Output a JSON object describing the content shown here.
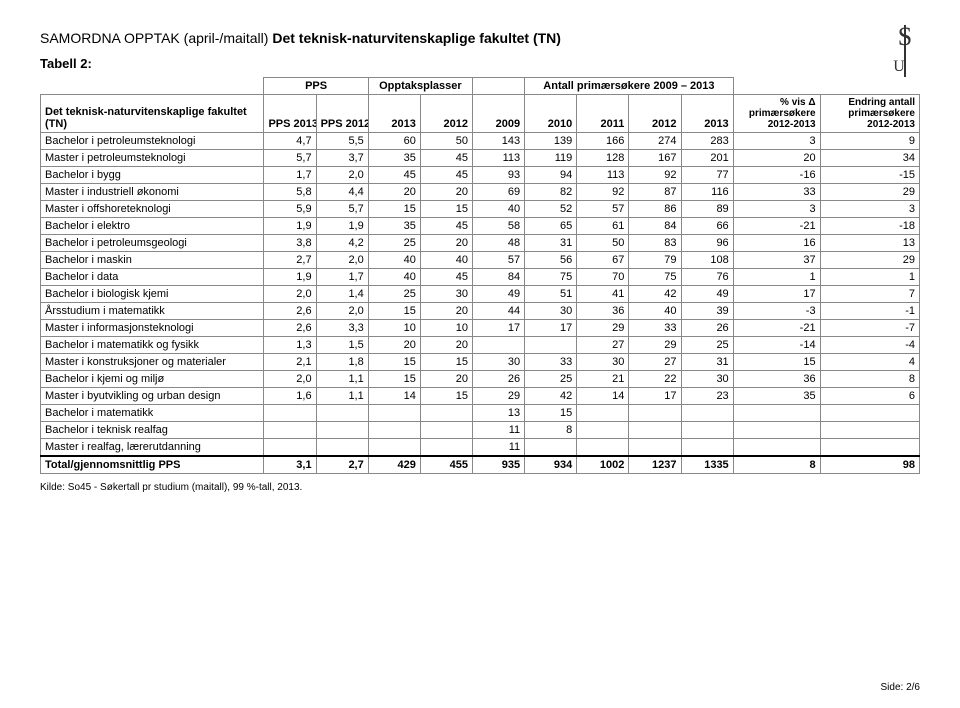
{
  "header": {
    "prefix": "SAMORDNA OPPTAK (april-/maitall)",
    "bold": "Det teknisk-naturvitenskaplige fakultet (TN)",
    "subtitle": "Tabell 2:"
  },
  "group_headers": {
    "pps": "PPS",
    "opptak": "Opptaksplasser",
    "antall": "Antall primærsøkere 2009 – 2013"
  },
  "columns": [
    "Det teknisk-naturvitenskaplige fakultet (TN)",
    "PPS 2013",
    "PPS 2012",
    "2013",
    "2012",
    "2009",
    "2010",
    "2011",
    "2012",
    "2013",
    "% vis Δ primærsøkere 2012-2013",
    "Endring antall primærsøkere 2012-2013"
  ],
  "rows": [
    [
      "Bachelor i petroleumsteknologi",
      "4,7",
      "5,5",
      "60",
      "50",
      "143",
      "139",
      "166",
      "274",
      "283",
      "3",
      "9"
    ],
    [
      "Master i petroleumsteknologi",
      "5,7",
      "3,7",
      "35",
      "45",
      "113",
      "119",
      "128",
      "167",
      "201",
      "20",
      "34"
    ],
    [
      "Bachelor i bygg",
      "1,7",
      "2,0",
      "45",
      "45",
      "93",
      "94",
      "113",
      "92",
      "77",
      "-16",
      "-15"
    ],
    [
      "Master i industriell økonomi",
      "5,8",
      "4,4",
      "20",
      "20",
      "69",
      "82",
      "92",
      "87",
      "116",
      "33",
      "29"
    ],
    [
      "Master i offshoreteknologi",
      "5,9",
      "5,7",
      "15",
      "15",
      "40",
      "52",
      "57",
      "86",
      "89",
      "3",
      "3"
    ],
    [
      "Bachelor i elektro",
      "1,9",
      "1,9",
      "35",
      "45",
      "58",
      "65",
      "61",
      "84",
      "66",
      "-21",
      "-18"
    ],
    [
      "Bachelor i petroleumsgeologi",
      "3,8",
      "4,2",
      "25",
      "20",
      "48",
      "31",
      "50",
      "83",
      "96",
      "16",
      "13"
    ],
    [
      "Bachelor i maskin",
      "2,7",
      "2,0",
      "40",
      "40",
      "57",
      "56",
      "67",
      "79",
      "108",
      "37",
      "29"
    ],
    [
      "Bachelor i data",
      "1,9",
      "1,7",
      "40",
      "45",
      "84",
      "75",
      "70",
      "75",
      "76",
      "1",
      "1"
    ],
    [
      "Bachelor i biologisk kjemi",
      "2,0",
      "1,4",
      "25",
      "30",
      "49",
      "51",
      "41",
      "42",
      "49",
      "17",
      "7"
    ],
    [
      "Årsstudium i matematikk",
      "2,6",
      "2,0",
      "15",
      "20",
      "44",
      "30",
      "36",
      "40",
      "39",
      "-3",
      "-1"
    ],
    [
      "Master i informasjonsteknologi",
      "2,6",
      "3,3",
      "10",
      "10",
      "17",
      "17",
      "29",
      "33",
      "26",
      "-21",
      "-7"
    ],
    [
      "Bachelor i matematikk og fysikk",
      "1,3",
      "1,5",
      "20",
      "20",
      "",
      "",
      "27",
      "29",
      "25",
      "-14",
      "-4"
    ],
    [
      "Master i konstruksjoner og materialer",
      "2,1",
      "1,8",
      "15",
      "15",
      "30",
      "33",
      "30",
      "27",
      "31",
      "15",
      "4"
    ],
    [
      "Bachelor i kjemi og miljø",
      "2,0",
      "1,1",
      "15",
      "20",
      "26",
      "25",
      "21",
      "22",
      "30",
      "36",
      "8"
    ],
    [
      "Master i byutvikling og urban design",
      "1,6",
      "1,1",
      "14",
      "15",
      "29",
      "42",
      "14",
      "17",
      "23",
      "35",
      "6"
    ],
    [
      "Bachelor i matematikk",
      "",
      "",
      "",
      "",
      "13",
      "15",
      "",
      "",
      "",
      "",
      ""
    ],
    [
      "Bachelor i teknisk realfag",
      "",
      "",
      "",
      "",
      "11",
      "8",
      "",
      "",
      "",
      "",
      ""
    ],
    [
      "Master i realfag, lærerutdanning",
      "",
      "",
      "",
      "",
      "11",
      "",
      "",
      "",
      "",
      "",
      ""
    ]
  ],
  "total": [
    "Total/gjennomsnittlig PPS",
    "3,1",
    "2,7",
    "429",
    "455",
    "935",
    "934",
    "1002",
    "1237",
    "1335",
    "8",
    "98"
  ],
  "footer": "Kilde: So45 - Søkertall pr studium (maitall), 99 %-tall, 2013.",
  "page": "Side: 2/6",
  "col_widths": [
    "180px",
    "42px",
    "42px",
    "42px",
    "42px",
    "42px",
    "42px",
    "42px",
    "42px",
    "42px",
    "70px",
    "80px"
  ]
}
